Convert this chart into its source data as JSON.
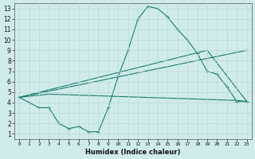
{
  "xlabel": "Humidex (Indice chaleur)",
  "background_color": "#d0ecea",
  "grid_color": "#b8d8d4",
  "line_color": "#1a7a6e",
  "xlim": [
    -0.5,
    23.5
  ],
  "ylim": [
    0.5,
    13.5
  ],
  "xticks": [
    0,
    1,
    2,
    3,
    4,
    5,
    6,
    7,
    8,
    9,
    10,
    11,
    12,
    13,
    14,
    15,
    16,
    17,
    18,
    19,
    20,
    21,
    22,
    23
  ],
  "yticks": [
    1,
    2,
    3,
    4,
    5,
    6,
    7,
    8,
    9,
    10,
    11,
    12,
    13
  ],
  "line1_x": [
    0,
    1,
    2,
    3,
    4,
    5,
    6,
    7,
    8,
    9,
    10,
    11,
    12,
    13,
    14,
    15,
    16,
    17,
    18,
    19,
    20,
    21,
    22,
    23
  ],
  "line1_y": [
    4.5,
    4.0,
    3.5,
    3.5,
    2.0,
    1.5,
    1.7,
    1.2,
    1.2,
    3.5,
    6.5,
    9.0,
    12.0,
    13.2,
    13.0,
    12.2,
    11.0,
    10.0,
    8.7,
    7.0,
    6.7,
    5.5,
    4.1,
    4.1
  ],
  "line2_x": [
    0,
    3,
    22,
    23
  ],
  "line2_y": [
    4.5,
    4.8,
    4.2,
    4.1
  ],
  "line3_x": [
    0,
    19,
    23
  ],
  "line3_y": [
    4.5,
    9.0,
    4.1
  ],
  "line4_x": [
    0,
    23
  ],
  "line4_y": [
    4.5,
    9.0
  ]
}
